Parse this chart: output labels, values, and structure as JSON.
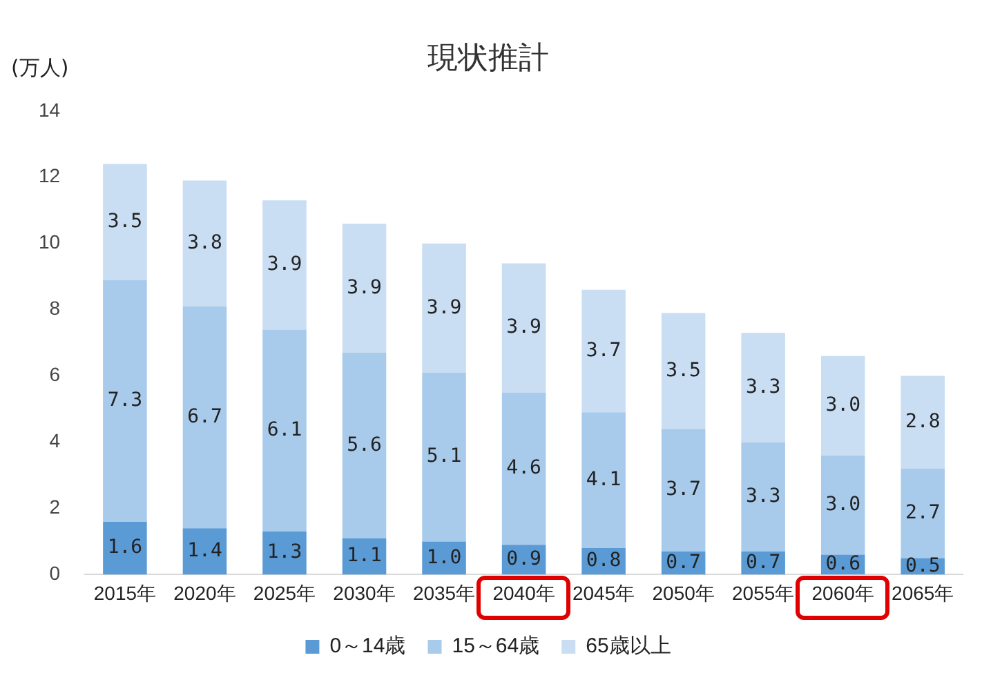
{
  "chart_data": {
    "type": "bar",
    "title": "現状推計",
    "ylabel": "(万人)",
    "stacked": true,
    "categories": [
      "2015年",
      "2020年",
      "2025年",
      "2030年",
      "2035年",
      "2040年",
      "2045年",
      "2050年",
      "2055年",
      "2060年",
      "2065年"
    ],
    "series": [
      {
        "name": "0～14歳",
        "color": "#5b9bd5",
        "values": [
          1.6,
          1.4,
          1.3,
          1.1,
          1.0,
          0.9,
          0.8,
          0.7,
          0.7,
          0.6,
          0.5
        ],
        "value_labels": [
          "1.6",
          "1.4",
          "1.3",
          "1.1",
          "1.0",
          "0.9",
          "0.8",
          "0.7",
          "0.7",
          "0.6",
          "0.5"
        ]
      },
      {
        "name": "15～64歳",
        "color": "#a9cbeb",
        "values": [
          7.3,
          6.7,
          6.1,
          5.6,
          5.1,
          4.6,
          4.1,
          3.7,
          3.3,
          3.0,
          2.7
        ],
        "value_labels": [
          "7.3",
          "6.7",
          "6.1",
          "5.6",
          "5.1",
          "4.6",
          "4.1",
          "3.7",
          "3.3",
          "3.0",
          "2.7"
        ]
      },
      {
        "name": "65歳以上",
        "color": "#c9def3",
        "values": [
          3.5,
          3.8,
          3.9,
          3.9,
          3.9,
          3.9,
          3.7,
          3.5,
          3.3,
          3.0,
          2.8
        ],
        "value_labels": [
          "3.5",
          "3.8",
          "3.9",
          "3.9",
          "3.9",
          "3.9",
          "3.7",
          "3.5",
          "3.3",
          "3.0",
          "2.8"
        ]
      }
    ],
    "ylim": [
      0,
      14
    ],
    "yticks": [
      0,
      2,
      4,
      6,
      8,
      10,
      12,
      14
    ],
    "grid": false,
    "legend": "bottom"
  }
}
